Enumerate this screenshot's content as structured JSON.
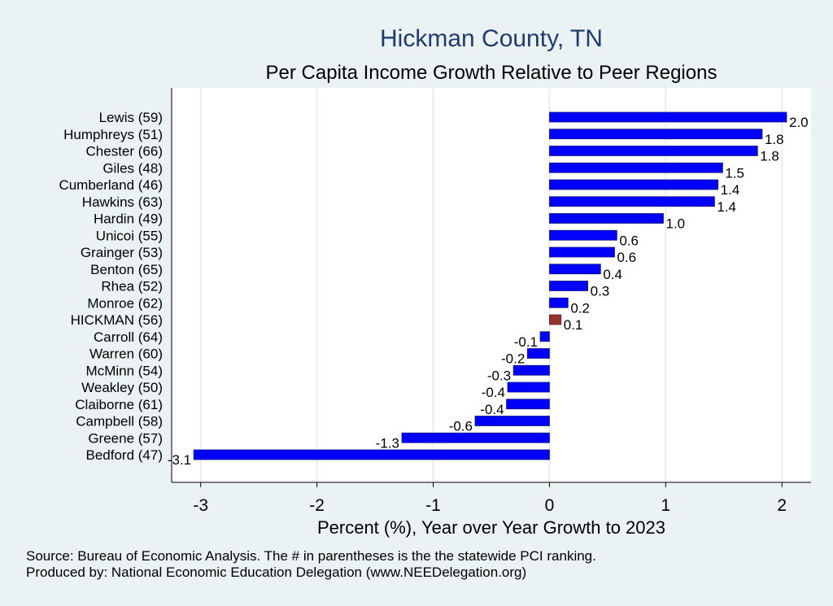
{
  "chart_data": {
    "type": "bar",
    "orientation": "horizontal",
    "title": "Hickman County, TN",
    "subtitle": "Per Capita Income Growth Relative to Peer Regions",
    "xlabel": "Percent (%), Year over Year Growth to 2023",
    "xlim": [
      -3.25,
      2.25
    ],
    "xticks": [
      -3,
      -2,
      -1,
      0,
      1,
      2
    ],
    "xtick_labels": [
      "-3",
      "-2",
      "-1",
      "0",
      "1",
      "2"
    ],
    "grid": true,
    "categories": [
      "Lewis (59)",
      "Humphreys (51)",
      "Chester (66)",
      "Giles (48)",
      "Cumberland (46)",
      "Hawkins (63)",
      "Hardin (49)",
      "Unicoi (55)",
      "Grainger (53)",
      "Benton (65)",
      "Rhea (52)",
      "Monroe (62)",
      "HICKMAN (56)",
      "Carroll (64)",
      "Warren (60)",
      "McMinn (54)",
      "Weakley (50)",
      "Claiborne (61)",
      "Campbell (58)",
      "Greene (57)",
      "Bedford (47)"
    ],
    "values": [
      2.04,
      1.83,
      1.79,
      1.49,
      1.45,
      1.42,
      0.98,
      0.58,
      0.56,
      0.44,
      0.33,
      0.16,
      0.1,
      -0.08,
      -0.19,
      -0.31,
      -0.36,
      -0.37,
      -0.64,
      -1.27,
      -3.06
    ],
    "value_labels": [
      "2.0",
      "1.8",
      "1.8",
      "1.5",
      "1.4",
      "1.4",
      "1.0",
      "0.6",
      "0.6",
      "0.4",
      "0.3",
      "0.2",
      "0.1",
      "-0.1",
      "-0.2",
      "-0.3",
      "-0.4",
      "-0.4",
      "-0.6",
      "-1.3",
      "-3.1"
    ],
    "highlight": "HICKMAN (56)",
    "colors": {
      "bar": "#0000ff",
      "highlight": "#953333",
      "background": "#eaf2f3",
      "plot_bg": "#ffffff",
      "title": "#1f3b6f",
      "grid": "#e8eeef"
    }
  },
  "footnotes": {
    "source": "Source: Bureau of Economic Analysis. The # in parentheses is the the statewide PCI ranking.",
    "produced": "Produced by: National Economic Education Delegation (www.NEEDelegation.org)"
  }
}
